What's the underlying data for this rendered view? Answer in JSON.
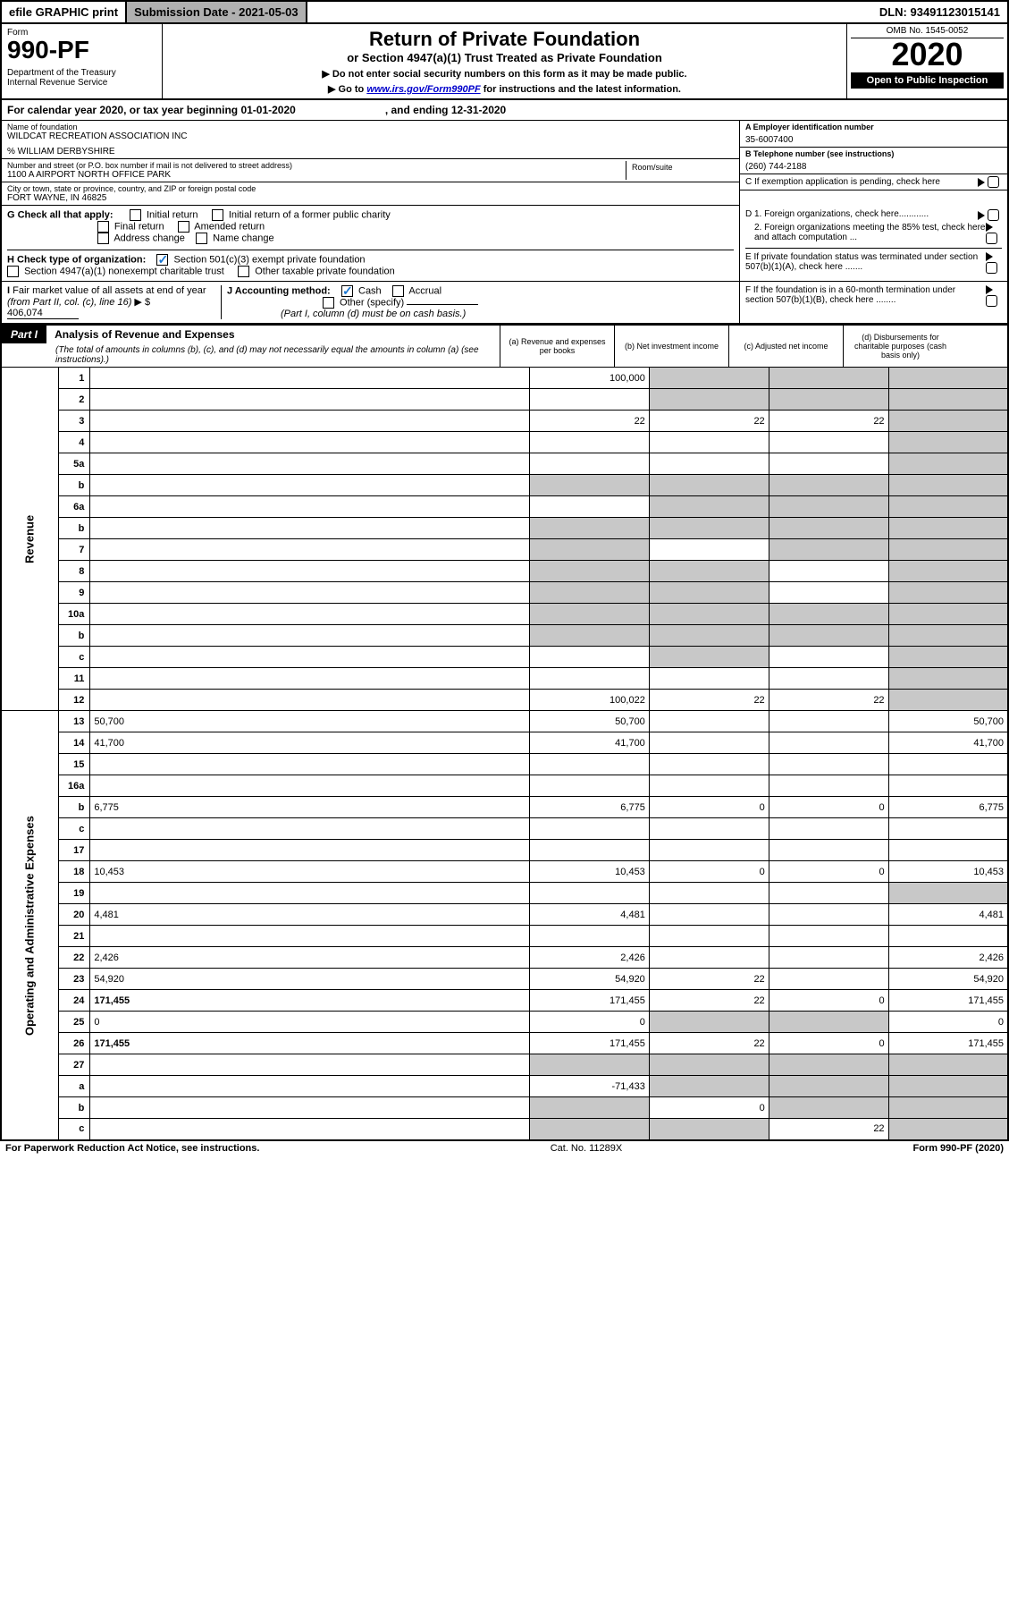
{
  "topbar": {
    "efile": "efile GRAPHIC print",
    "subdate_label": "Submission Date - 2021-05-03",
    "dln": "DLN: 93491123015141"
  },
  "header": {
    "form": "Form",
    "formnum": "990-PF",
    "dept": "Department of the Treasury\nInternal Revenue Service",
    "title": "Return of Private Foundation",
    "subtitle": "or Section 4947(a)(1) Trust Treated as Private Foundation",
    "note1": "▶ Do not enter social security numbers on this form as it may be made public.",
    "note2": "▶ Go to www.irs.gov/Form990PF for instructions and the latest information.",
    "omb": "OMB No. 1545-0052",
    "year": "2020",
    "open": "Open to Public Inspection"
  },
  "calrow": "For calendar year 2020, or tax year beginning 01-01-2020                              , and ending 12-31-2020",
  "info": {
    "name_label": "Name of foundation",
    "name": "WILDCAT RECREATION ASSOCIATION INC",
    "care": "% WILLIAM DERBYSHIRE",
    "addr_label": "Number and street (or P.O. box number if mail is not delivered to street address)",
    "addr": "1100 A AIRPORT NORTH OFFICE PARK",
    "room_label": "Room/suite",
    "city_label": "City or town, state or province, country, and ZIP or foreign postal code",
    "city": "FORT WAYNE, IN  46825",
    "a_label": "A Employer identification number",
    "a_val": "35-6007400",
    "b_label": "B Telephone number (see instructions)",
    "b_val": "(260) 744-2188",
    "c_label": "C If exemption application is pending, check here"
  },
  "g": {
    "label": "G Check all that apply:",
    "opts": [
      "Initial return",
      "Initial return of a former public charity",
      "Final return",
      "Amended return",
      "Address change",
      "Name change"
    ]
  },
  "h": {
    "label": "H Check type of organization:",
    "opt1": "Section 501(c)(3) exempt private foundation",
    "opt2": "Section 4947(a)(1) nonexempt charitable trust",
    "opt3": "Other taxable private foundation"
  },
  "i": {
    "label": "I Fair market value of all assets at end of year (from Part II, col. (c), line 16) ▶ $",
    "val": "406,074"
  },
  "j": {
    "label": "J Accounting method:",
    "cash": "Cash",
    "accrual": "Accrual",
    "other": "Other (specify)",
    "note": "(Part I, column (d) must be on cash basis.)"
  },
  "d": {
    "d1": "D 1. Foreign organizations, check here............",
    "d2": "2. Foreign organizations meeting the 85% test, check here and attach computation ...",
    "e": "E  If private foundation status was terminated under section 507(b)(1)(A), check here .......",
    "f": "F  If the foundation is in a 60-month termination under section 507(b)(1)(B), check here ........"
  },
  "part1": {
    "label": "Part I",
    "title": "Analysis of Revenue and Expenses",
    "note": "(The total of amounts in columns (b), (c), and (d) may not necessarily equal the amounts in column (a) (see instructions).)",
    "col_a": "(a)   Revenue and expenses per books",
    "col_b": "(b)  Net investment income",
    "col_c": "(c)  Adjusted net income",
    "col_d": "(d)  Disbursements for charitable purposes (cash basis only)"
  },
  "side_labels": {
    "rev": "Revenue",
    "exp": "Operating and Administrative Expenses"
  },
  "rows": [
    {
      "n": "1",
      "d": "",
      "a": "100,000",
      "b": "",
      "c": "",
      "sb": true,
      "sc": true,
      "sd": true
    },
    {
      "n": "2",
      "d": "",
      "a": "",
      "b": "",
      "c": "",
      "sb": true,
      "sc": true,
      "sd": true
    },
    {
      "n": "3",
      "d": "",
      "a": "22",
      "b": "22",
      "c": "22",
      "sd": true
    },
    {
      "n": "4",
      "d": "",
      "a": "",
      "b": "",
      "c": "",
      "sd": true
    },
    {
      "n": "5a",
      "d": "",
      "a": "",
      "b": "",
      "c": "",
      "sd": true
    },
    {
      "n": "b",
      "d": "",
      "a": "",
      "b": "",
      "c": "",
      "sa": true,
      "sb": true,
      "sc": true,
      "sd": true
    },
    {
      "n": "6a",
      "d": "",
      "a": "",
      "b": "",
      "c": "",
      "sb": true,
      "sc": true,
      "sd": true
    },
    {
      "n": "b",
      "d": "",
      "a": "",
      "b": "",
      "c": "",
      "sa": true,
      "sb": true,
      "sc": true,
      "sd": true
    },
    {
      "n": "7",
      "d": "",
      "a": "",
      "b": "",
      "c": "",
      "sa": true,
      "sc": true,
      "sd": true
    },
    {
      "n": "8",
      "d": "",
      "a": "",
      "b": "",
      "c": "",
      "sa": true,
      "sb": true,
      "sd": true
    },
    {
      "n": "9",
      "d": "",
      "a": "",
      "b": "",
      "c": "",
      "sa": true,
      "sb": true,
      "sd": true
    },
    {
      "n": "10a",
      "d": "",
      "a": "",
      "b": "",
      "c": "",
      "sa": true,
      "sb": true,
      "sc": true,
      "sd": true
    },
    {
      "n": "b",
      "d": "",
      "a": "",
      "b": "",
      "c": "",
      "sa": true,
      "sb": true,
      "sc": true,
      "sd": true
    },
    {
      "n": "c",
      "d": "",
      "a": "",
      "b": "",
      "c": "",
      "sb": true,
      "sd": true
    },
    {
      "n": "11",
      "d": "",
      "a": "",
      "b": "",
      "c": "",
      "sd": true
    },
    {
      "n": "12",
      "d": "",
      "a": "100,022",
      "b": "22",
      "c": "22",
      "bold": true,
      "sd": true
    },
    {
      "n": "13",
      "d": "50,700",
      "a": "50,700",
      "b": "",
      "c": ""
    },
    {
      "n": "14",
      "d": "41,700",
      "a": "41,700",
      "b": "",
      "c": ""
    },
    {
      "n": "15",
      "d": "",
      "a": "",
      "b": "",
      "c": ""
    },
    {
      "n": "16a",
      "d": "",
      "a": "",
      "b": "",
      "c": ""
    },
    {
      "n": "b",
      "d": "6,775",
      "a": "6,775",
      "b": "0",
      "c": "0"
    },
    {
      "n": "c",
      "d": "",
      "a": "",
      "b": "",
      "c": ""
    },
    {
      "n": "17",
      "d": "",
      "a": "",
      "b": "",
      "c": ""
    },
    {
      "n": "18",
      "d": "10,453",
      "a": "10,453",
      "b": "0",
      "c": "0"
    },
    {
      "n": "19",
      "d": "",
      "a": "",
      "b": "",
      "c": "",
      "sd": true
    },
    {
      "n": "20",
      "d": "4,481",
      "a": "4,481",
      "b": "",
      "c": ""
    },
    {
      "n": "21",
      "d": "",
      "a": "",
      "b": "",
      "c": ""
    },
    {
      "n": "22",
      "d": "2,426",
      "a": "2,426",
      "b": "",
      "c": ""
    },
    {
      "n": "23",
      "d": "54,920",
      "a": "54,920",
      "b": "22",
      "c": ""
    },
    {
      "n": "24",
      "d": "171,455",
      "a": "171,455",
      "b": "22",
      "c": "0",
      "bold": true
    },
    {
      "n": "25",
      "d": "0",
      "a": "0",
      "b": "",
      "c": "",
      "sb": true,
      "sc": true
    },
    {
      "n": "26",
      "d": "171,455",
      "a": "171,455",
      "b": "22",
      "c": "0",
      "bold": true
    },
    {
      "n": "27",
      "d": "",
      "a": "",
      "b": "",
      "c": "",
      "sa": true,
      "sb": true,
      "sc": true,
      "sd": true
    },
    {
      "n": "a",
      "d": "",
      "a": "-71,433",
      "b": "",
      "c": "",
      "bold": true,
      "sb": true,
      "sc": true,
      "sd": true
    },
    {
      "n": "b",
      "d": "",
      "a": "",
      "b": "0",
      "c": "",
      "bold": true,
      "sa": true,
      "sc": true,
      "sd": true
    },
    {
      "n": "c",
      "d": "",
      "a": "",
      "b": "",
      "c": "22",
      "bold": true,
      "sa": true,
      "sb": true,
      "sd": true
    }
  ],
  "footer": {
    "left": "For Paperwork Reduction Act Notice, see instructions.",
    "mid": "Cat. No. 11289X",
    "right": "Form 990-PF (2020)"
  }
}
